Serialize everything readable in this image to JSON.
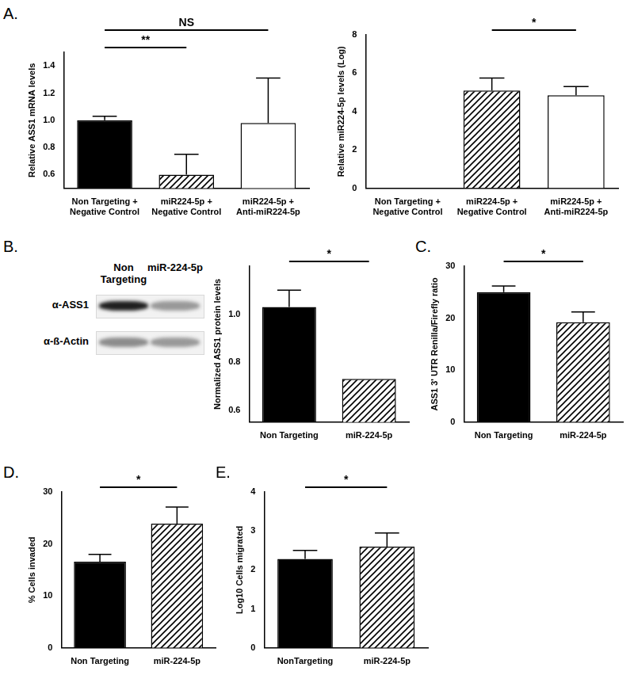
{
  "chart_data": [
    {
      "panel_label": "A.",
      "type": "bar",
      "y_label": "Relative ASS1 mRNA levels",
      "categories": [
        "Non Targeting + Negative Control",
        "miR224-5p + Negative Control",
        "miR224-5p + Anti-miR224-5p"
      ],
      "values": [
        1.0,
        0.6,
        0.98
      ],
      "errors": [
        0.03,
        0.15,
        0.33
      ],
      "colors": [
        "#000000",
        "hatched",
        "#ffffff"
      ],
      "ylim": [
        0.5,
        1.5
      ],
      "yticks": [
        0.6,
        0.8,
        {
          "value": 1,
          "label": "1.0"
        },
        1.2,
        1.4
      ],
      "annotations": [
        {
          "text": "**",
          "from": 0,
          "to": 1
        },
        {
          "text": "NS",
          "from": 0,
          "to": 2
        }
      ],
      "grid": false
    },
    {
      "type": "bar",
      "y_label": "Relative miR224-5p levels (Log)",
      "categories": [
        "Non Targeting + Negative Control",
        "miR224-5p + Negative Control",
        "miR224-5p + Anti-miR224-5p"
      ],
      "values": [
        0,
        5.1,
        4.85
      ],
      "errors": [
        null,
        0.65,
        0.45
      ],
      "colors": [
        "#000000",
        "hatched",
        "#ffffff"
      ],
      "ylim": [
        0,
        8
      ],
      "yticks": [
        0,
        2,
        4,
        6,
        8
      ],
      "annotations": [
        {
          "text": "*",
          "from": 1,
          "to": 2
        }
      ],
      "grid": false
    },
    {
      "panel_label": "B.",
      "type": "bar",
      "y_label": "Normalized ASS1 protein levels",
      "blot": {
        "lanes": [
          "Non Targeting",
          "miR-224-5p"
        ],
        "rows": [
          "α-ASS1",
          "α-ß-Actin"
        ]
      },
      "categories": [
        "Non Targeting",
        "miR-224-5p"
      ],
      "values": [
        1.03,
        0.73
      ],
      "errors": [
        0.07,
        null
      ],
      "colors": [
        "#000000",
        "hatched"
      ],
      "ylim": [
        0.55,
        1.2
      ],
      "yticks": [
        0.6,
        0.8,
        {
          "value": 1,
          "label": "1.0"
        }
      ],
      "annotations": [
        {
          "text": "*",
          "from": 0,
          "to": 1
        }
      ],
      "grid": false
    },
    {
      "panel_label": "C.",
      "type": "bar",
      "y_label": "ASS1 3' UTR Renilla/Firefly ratio",
      "categories": [
        "Non Targeting",
        "miR-224-5p"
      ],
      "values": [
        25,
        19.2
      ],
      "errors": [
        1.2,
        2.0
      ],
      "colors": [
        "#000000",
        "hatched"
      ],
      "ylim": [
        0,
        30
      ],
      "yticks": [
        0,
        10,
        20,
        30
      ],
      "annotations": [
        {
          "text": "*",
          "from": 0,
          "to": 1
        }
      ],
      "grid": false
    },
    {
      "panel_label": "D.",
      "type": "bar",
      "y_label": "% Cells invaded",
      "categories": [
        "Non Targeting",
        "miR-224-5p"
      ],
      "values": [
        16.6,
        23.9
      ],
      "errors": [
        1.4,
        3.2
      ],
      "colors": [
        "#000000",
        "hatched"
      ],
      "ylim": [
        0,
        30
      ],
      "yticks": [
        0,
        10,
        20,
        30
      ],
      "annotations": [
        {
          "text": "*",
          "from": 0,
          "to": 1
        }
      ],
      "grid": false
    },
    {
      "panel_label": "E.",
      "type": "bar",
      "y_label": "Log10 Cells migrated",
      "categories": [
        "NonTargeting",
        "miR-224-5p"
      ],
      "values": [
        2.28,
        2.6
      ],
      "errors": [
        0.22,
        0.35
      ],
      "colors": [
        "#000000",
        "hatched"
      ],
      "ylim": [
        0,
        4
      ],
      "yticks": [
        0,
        1,
        2,
        3,
        4
      ],
      "annotations": [
        {
          "text": "*",
          "from": 0,
          "to": 1
        }
      ],
      "grid": false
    }
  ]
}
